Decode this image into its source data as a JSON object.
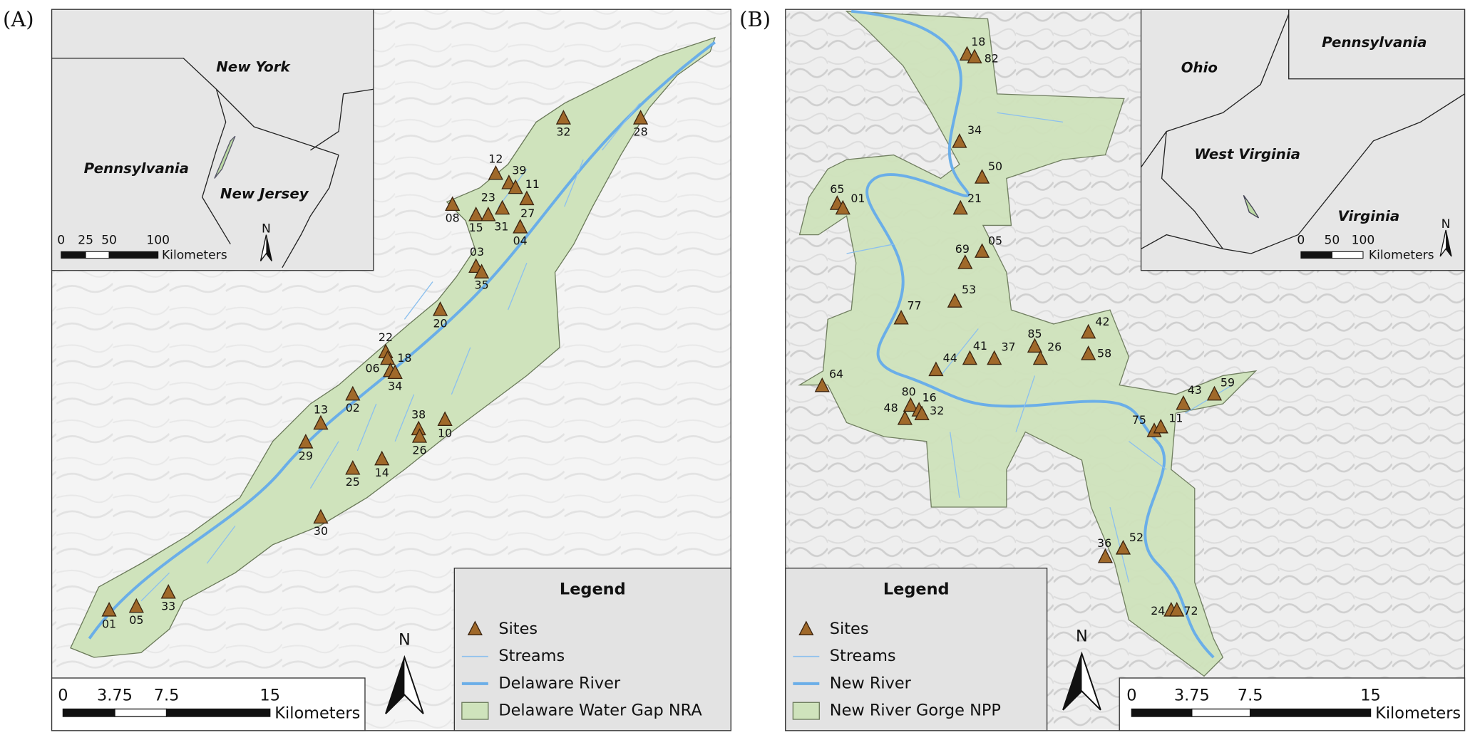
{
  "panels": [
    {
      "label": "(A)",
      "inset": {
        "places": [
          "New York",
          "Pennsylvania",
          "New Jersey"
        ],
        "scale_labels": [
          "0",
          "25",
          "50",
          "100"
        ],
        "scale_unit": "Kilometers",
        "north": "N"
      },
      "sites": [
        "32",
        "28",
        "12",
        "39",
        "11",
        "08",
        "15",
        "23",
        "31",
        "27",
        "04",
        "03",
        "35",
        "20",
        "22",
        "18",
        "06",
        "34",
        "02",
        "13",
        "29",
        "38",
        "10",
        "26",
        "14",
        "25",
        "30",
        "33",
        "01",
        "05"
      ],
      "legend": {
        "title": "Legend",
        "items": [
          "Sites",
          "Streams",
          "Delaware River",
          "Delaware Water Gap NRA"
        ]
      },
      "scale": {
        "labels": [
          "0",
          "3.75",
          "7.5",
          "15"
        ],
        "unit": "Kilometers"
      },
      "north": "N"
    },
    {
      "label": "(B)",
      "inset": {
        "places": [
          "Pennsylvania",
          "Ohio",
          "West Virginia",
          "Virginia"
        ],
        "scale_labels": [
          "0",
          "50",
          "100"
        ],
        "scale_unit": "Kilometers",
        "north": "N"
      },
      "sites": [
        "18",
        "82",
        "34",
        "50",
        "21",
        "65",
        "01",
        "69",
        "05",
        "53",
        "77",
        "85",
        "42",
        "26",
        "58",
        "37",
        "41",
        "44",
        "64",
        "80",
        "16",
        "48",
        "32",
        "43",
        "59",
        "75",
        "11",
        "36",
        "52",
        "24",
        "72"
      ],
      "legend": {
        "title": "Legend",
        "items": [
          "Sites",
          "Streams",
          "New River",
          "New River Gorge NPP"
        ]
      },
      "scale": {
        "labels": [
          "0",
          "3.75",
          "7.5",
          "15"
        ],
        "unit": "Kilometers"
      },
      "north": "N"
    }
  ]
}
